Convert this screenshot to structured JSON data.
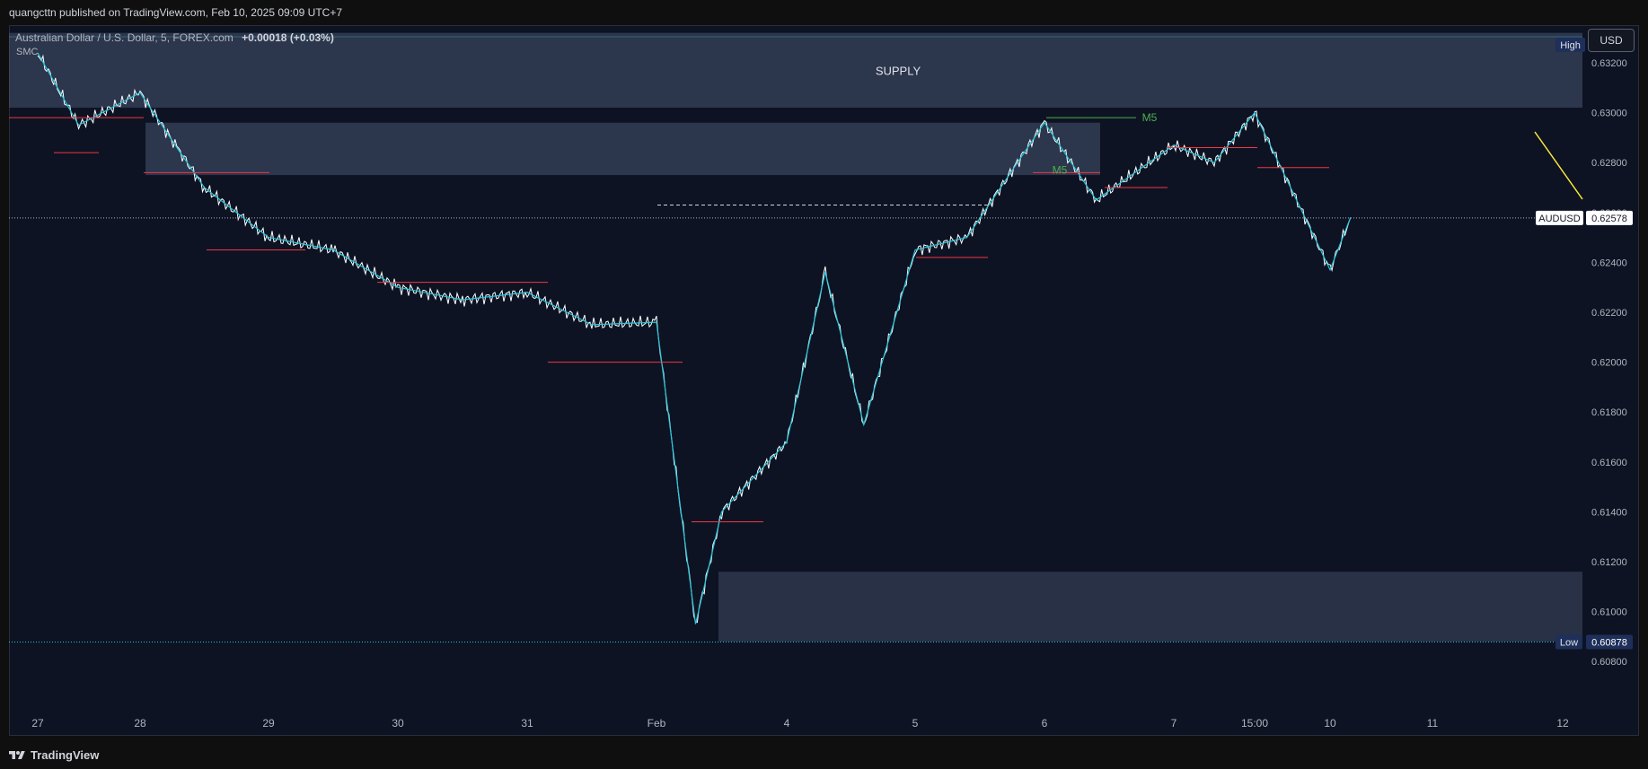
{
  "header": {
    "publish_line": "quangcttn published on TradingView.com, Feb 10, 2025 09:09 UTC+7"
  },
  "legend": {
    "symbol_desc": "Australian Dollar / U.S. Dollar, 5, FOREX.com",
    "change": "+0.00018 (+0.03%)",
    "indicator": "SMC"
  },
  "toolbar": {
    "currency_button": "USD"
  },
  "footer": {
    "brand": "TradingView"
  },
  "colors": {
    "background": "#0d1323",
    "price_line": "#ffffff",
    "zigzag": "#26c6da",
    "structure": "#f23645",
    "zone": "#5c6b8a",
    "label_green": "#4caf50",
    "arrow": "#ffeb3b"
  },
  "chart_data": {
    "type": "line",
    "title": "Australian Dollar / U.S. Dollar, 5, FOREX.com",
    "x_ticks": [
      "27",
      "28",
      "29",
      "30",
      "31",
      "Feb",
      "4",
      "5",
      "6",
      "7",
      "15:00",
      "10",
      "11",
      "12"
    ],
    "y_ticks": [
      "0.63200",
      "0.63000",
      "0.62800",
      "0.62600",
      "0.62400",
      "0.62200",
      "0.62000",
      "0.61800",
      "0.61600",
      "0.61400",
      "0.61200",
      "0.61000",
      "0.60800"
    ],
    "ylim": [
      0.6061,
      0.6346
    ],
    "grid": false,
    "series": [
      {
        "name": "AUDUSD",
        "x": [
          "27",
          "27.4",
          "28",
          "28.3",
          "28.5",
          "29",
          "29.5",
          "30",
          "30.5",
          "31",
          "31.5",
          "Feb",
          "Feb.3",
          "Feb.5",
          "4",
          "4.3",
          "4.6",
          "5",
          "5.4",
          "6",
          "6.4",
          "7",
          "7.5",
          "15:00",
          "10",
          "10.2"
        ],
        "y": [
          0.6324,
          0.6295,
          0.6308,
          0.6285,
          0.627,
          0.625,
          0.6245,
          0.623,
          0.6225,
          0.6228,
          0.6215,
          0.6216,
          0.6095,
          0.614,
          0.6168,
          0.6236,
          0.6175,
          0.6245,
          0.625,
          0.6296,
          0.6265,
          0.6287,
          0.628,
          0.63,
          0.6237,
          0.6258
        ]
      }
    ],
    "zones": [
      {
        "label": "SUPPLY",
        "from": 0.6302,
        "to": 0.6332
      },
      {
        "label": "",
        "from": 0.6275,
        "to": 0.6296
      },
      {
        "label": "",
        "from": 0.6088,
        "to": 0.6116
      }
    ],
    "annotations": [
      "M5",
      "M5"
    ],
    "price_labels": {
      "high": "High",
      "low": "Low",
      "low_value": "0.60878",
      "current_symbol": "AUDUSD",
      "current_value": "0.62578"
    },
    "current_price": 0.62578,
    "low_price": 0.60878
  }
}
